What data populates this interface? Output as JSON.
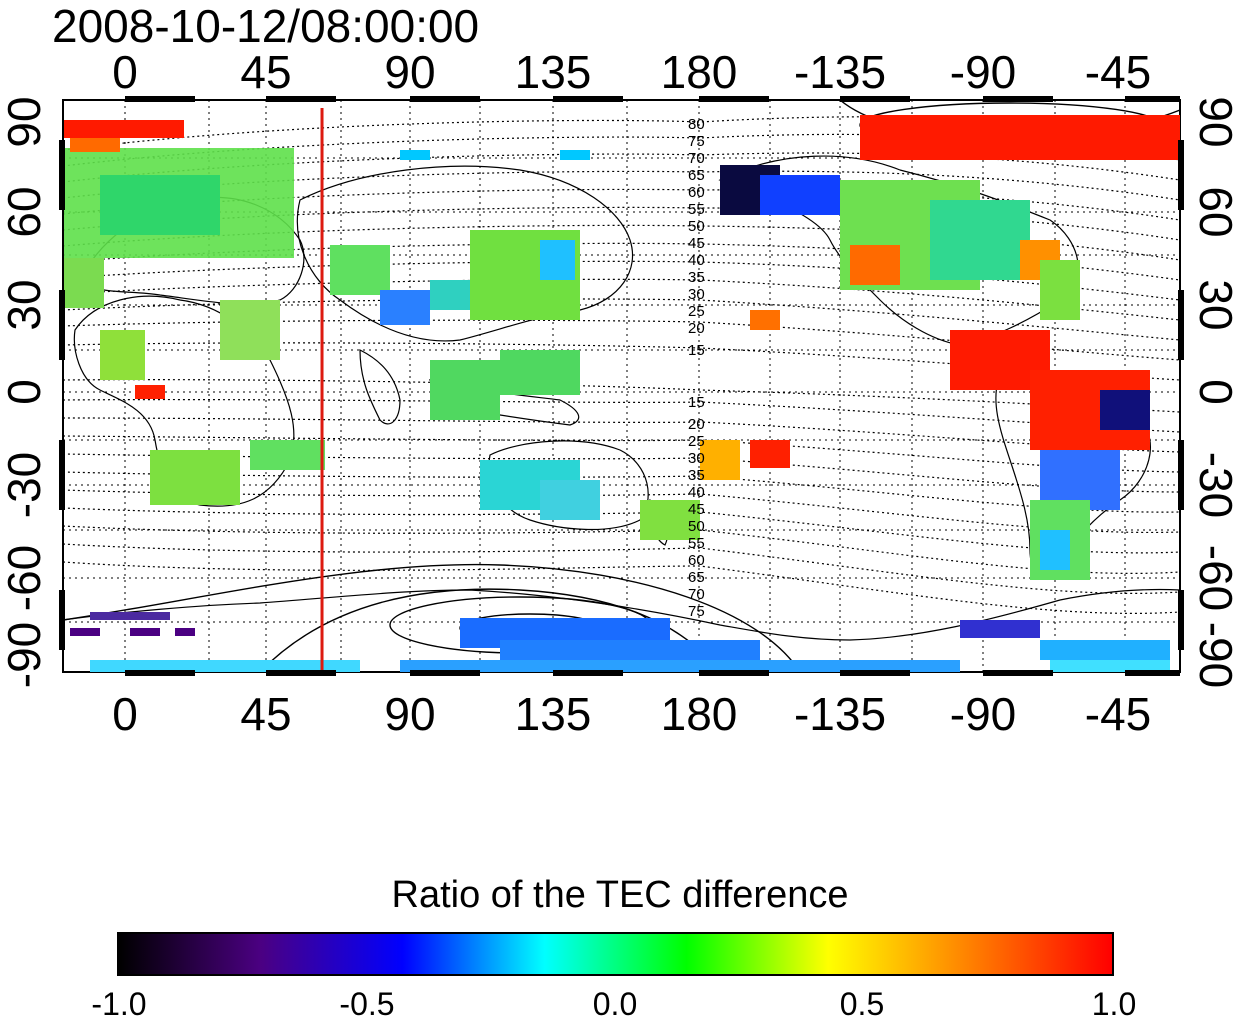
{
  "title": "2008-10-12/08:00:00",
  "map": {
    "top_ticks": [
      "0",
      "45",
      "90",
      "135",
      "180",
      "-135",
      "-90",
      "-45"
    ],
    "bottom_ticks": [
      "0",
      "45",
      "90",
      "135",
      "180",
      "-135",
      "-90",
      "-45"
    ],
    "left_ticks": [
      "90",
      "60",
      "30",
      "0",
      "-30",
      "-60",
      "-90"
    ],
    "right_ticks": [
      "90",
      "60",
      "30",
      "0",
      "-30",
      "-60",
      "-90"
    ],
    "meridian_line_longitude": 62,
    "meridian_line_color": "#dd1a10",
    "contour_labels_north": [
      "80",
      "75",
      "70",
      "65",
      "60",
      "55",
      "50",
      "45",
      "40",
      "35",
      "30",
      "25",
      "20",
      "15"
    ],
    "contour_labels_south": [
      "15",
      "20",
      "25",
      "30",
      "35",
      "40",
      "45",
      "50",
      "55",
      "60",
      "65",
      "70",
      "75"
    ]
  },
  "colorbar": {
    "title": "Ratio of the TEC difference",
    "ticks": [
      "-1.0",
      "-0.5",
      "0.0",
      "0.5",
      "1.0"
    ],
    "colors": [
      "#000000",
      "#4b0082",
      "#0000ff",
      "#00ffff",
      "#00ff00",
      "#ffff00",
      "#ff8000",
      "#ff0000"
    ]
  }
}
